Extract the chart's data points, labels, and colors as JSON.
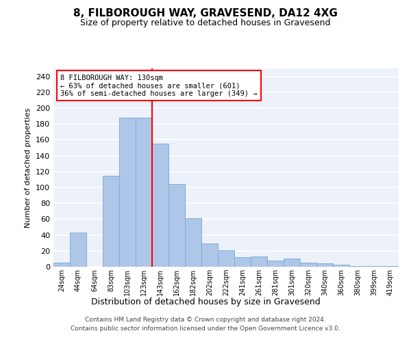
{
  "title": "8, FILBOROUGH WAY, GRAVESEND, DA12 4XG",
  "subtitle": "Size of property relative to detached houses in Gravesend",
  "xlabel": "Distribution of detached houses by size in Gravesend",
  "ylabel": "Number of detached properties",
  "categories": [
    "24sqm",
    "44sqm",
    "64sqm",
    "83sqm",
    "103sqm",
    "123sqm",
    "143sqm",
    "162sqm",
    "182sqm",
    "202sqm",
    "222sqm",
    "241sqm",
    "261sqm",
    "281sqm",
    "301sqm",
    "320sqm",
    "340sqm",
    "360sqm",
    "380sqm",
    "399sqm",
    "419sqm"
  ],
  "values": [
    5,
    43,
    0,
    115,
    188,
    188,
    155,
    104,
    61,
    29,
    21,
    12,
    13,
    8,
    10,
    5,
    4,
    3,
    1,
    1,
    1
  ],
  "bar_color": "#aec6e8",
  "bar_edgecolor": "#7bafd4",
  "vline_x": 6.0,
  "vline_color": "red",
  "annotation_text": "8 FILBOROUGH WAY: 130sqm\n← 63% of detached houses are smaller (601)\n36% of semi-detached houses are larger (349) →",
  "annotation_box_color": "white",
  "annotation_box_edgecolor": "red",
  "ylim": [
    0,
    250
  ],
  "yticks": [
    0,
    20,
    40,
    60,
    80,
    100,
    120,
    140,
    160,
    180,
    200,
    220,
    240
  ],
  "footer_line1": "Contains HM Land Registry data © Crown copyright and database right 2024.",
  "footer_line2": "Contains public sector information licensed under the Open Government Licence v3.0.",
  "background_color": "#edf2fa",
  "grid_color": "white"
}
